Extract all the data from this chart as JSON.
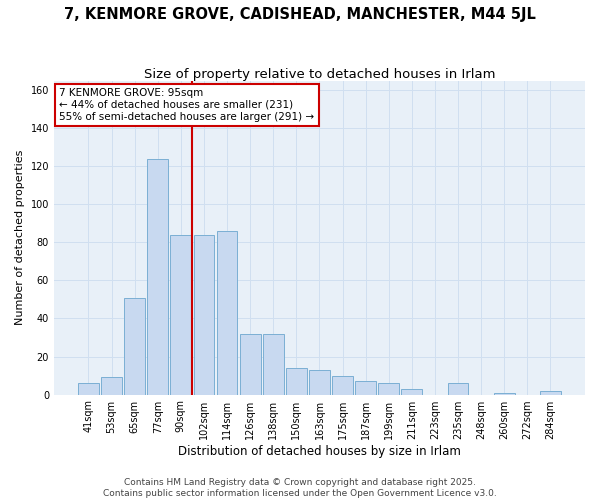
{
  "title": "7, KENMORE GROVE, CADISHEAD, MANCHESTER, M44 5JL",
  "subtitle": "Size of property relative to detached houses in Irlam",
  "xlabel": "Distribution of detached houses by size in Irlam",
  "ylabel": "Number of detached properties",
  "categories": [
    "41sqm",
    "53sqm",
    "65sqm",
    "77sqm",
    "90sqm",
    "102sqm",
    "114sqm",
    "126sqm",
    "138sqm",
    "150sqm",
    "163sqm",
    "175sqm",
    "187sqm",
    "199sqm",
    "211sqm",
    "223sqm",
    "235sqm",
    "248sqm",
    "260sqm",
    "272sqm",
    "284sqm"
  ],
  "values": [
    6,
    9,
    51,
    124,
    84,
    84,
    86,
    32,
    32,
    14,
    13,
    10,
    7,
    6,
    3,
    0,
    6,
    0,
    1,
    0,
    2
  ],
  "bar_color": "#c8d9f0",
  "bar_edge_color": "#7bafd4",
  "vline_x": 4.5,
  "vline_color": "#cc0000",
  "annotation_text": "7 KENMORE GROVE: 95sqm\n← 44% of detached houses are smaller (231)\n55% of semi-detached houses are larger (291) →",
  "annotation_box_color": "#ffffff",
  "annotation_box_edge_color": "#cc0000",
  "ylim": [
    0,
    165
  ],
  "yticks": [
    0,
    20,
    40,
    60,
    80,
    100,
    120,
    140,
    160
  ],
  "grid_color": "#d0dff0",
  "bg_color": "#e8f0f8",
  "footer": "Contains HM Land Registry data © Crown copyright and database right 2025.\nContains public sector information licensed under the Open Government Licence v3.0.",
  "title_fontsize": 10.5,
  "subtitle_fontsize": 9.5,
  "xlabel_fontsize": 8.5,
  "ylabel_fontsize": 8,
  "tick_fontsize": 7,
  "footer_fontsize": 6.5,
  "annotation_fontsize": 7.5
}
